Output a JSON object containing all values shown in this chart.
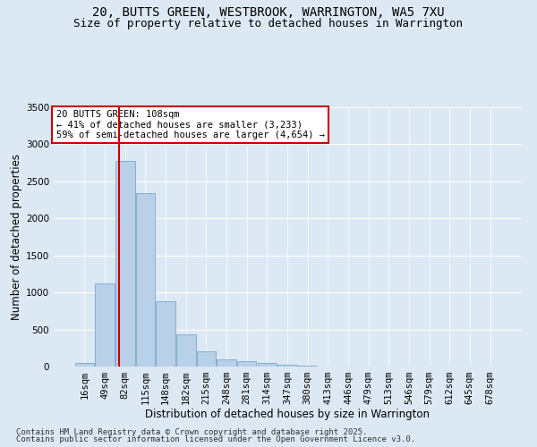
{
  "title_line1": "20, BUTTS GREEN, WESTBROOK, WARRINGTON, WA5 7XU",
  "title_line2": "Size of property relative to detached houses in Warrington",
  "xlabel": "Distribution of detached houses by size in Warrington",
  "ylabel": "Number of detached properties",
  "bar_color": "#b8d0e8",
  "bar_edge_color": "#7aa8cc",
  "background_color": "#dce8f4",
  "grid_color": "#ffffff",
  "categories": [
    "16sqm",
    "49sqm",
    "82sqm",
    "115sqm",
    "148sqm",
    "182sqm",
    "215sqm",
    "248sqm",
    "281sqm",
    "314sqm",
    "347sqm",
    "380sqm",
    "413sqm",
    "446sqm",
    "479sqm",
    "513sqm",
    "546sqm",
    "579sqm",
    "612sqm",
    "645sqm",
    "678sqm"
  ],
  "values": [
    50,
    1120,
    2780,
    2340,
    880,
    440,
    200,
    100,
    70,
    50,
    25,
    12,
    6,
    4,
    2,
    1,
    1,
    0,
    0,
    0,
    0
  ],
  "vline_x": 1.72,
  "vline_color": "#cc0000",
  "annotation_text": "20 BUTTS GREEN: 108sqm\n← 41% of detached houses are smaller (3,233)\n59% of semi-detached houses are larger (4,654) →",
  "annotation_box_color": "#ffffff",
  "annotation_box_edge": "#cc0000",
  "footnote1": "Contains HM Land Registry data © Crown copyright and database right 2025.",
  "footnote2": "Contains public sector information licensed under the Open Government Licence v3.0.",
  "ylim": [
    0,
    3500
  ],
  "yticks": [
    0,
    500,
    1000,
    1500,
    2000,
    2500,
    3000,
    3500
  ],
  "title_fontsize": 10,
  "subtitle_fontsize": 9,
  "axis_label_fontsize": 8.5,
  "tick_fontsize": 7.5,
  "annotation_fontsize": 7.5,
  "footnote_fontsize": 6.5
}
